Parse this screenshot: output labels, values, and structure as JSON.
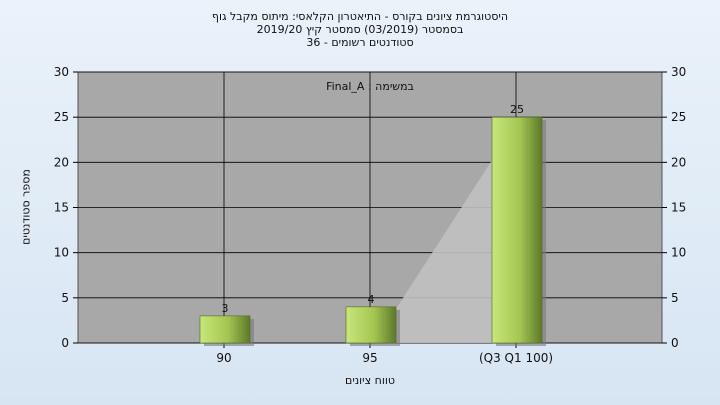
{
  "chart_data": {
    "type": "bar",
    "title_lines": [
      "היסטוגרמת ציונים בקורס - התיאטרון הקלאסי: מיתוס מקבל גוף",
      "בסמסטר  (03/2019)  סמסטר קיץ 2019/20",
      "סטודנטים רשומים - 36"
    ],
    "annotation": "במשימה : Final_A",
    "xlabel": "טווח ציונים",
    "ylabel": "מספר סטודנטים",
    "categories": [
      "90",
      "95",
      "(Q3 Q1 100)"
    ],
    "values": [
      3,
      4,
      25
    ],
    "data_labels": [
      "3",
      "4",
      "25"
    ],
    "ylim": [
      0,
      30
    ],
    "y_ticks": [
      "0",
      "5",
      "10",
      "15",
      "20",
      "25",
      "30"
    ],
    "grid": true,
    "legend": "none",
    "colors": {
      "plot_background": "#a8a8a8",
      "bar_light": "#c8e67a",
      "bar_dark": "#5d7a2a",
      "shadow": "#c0c0c0",
      "page_background": "#dce8f4"
    }
  }
}
